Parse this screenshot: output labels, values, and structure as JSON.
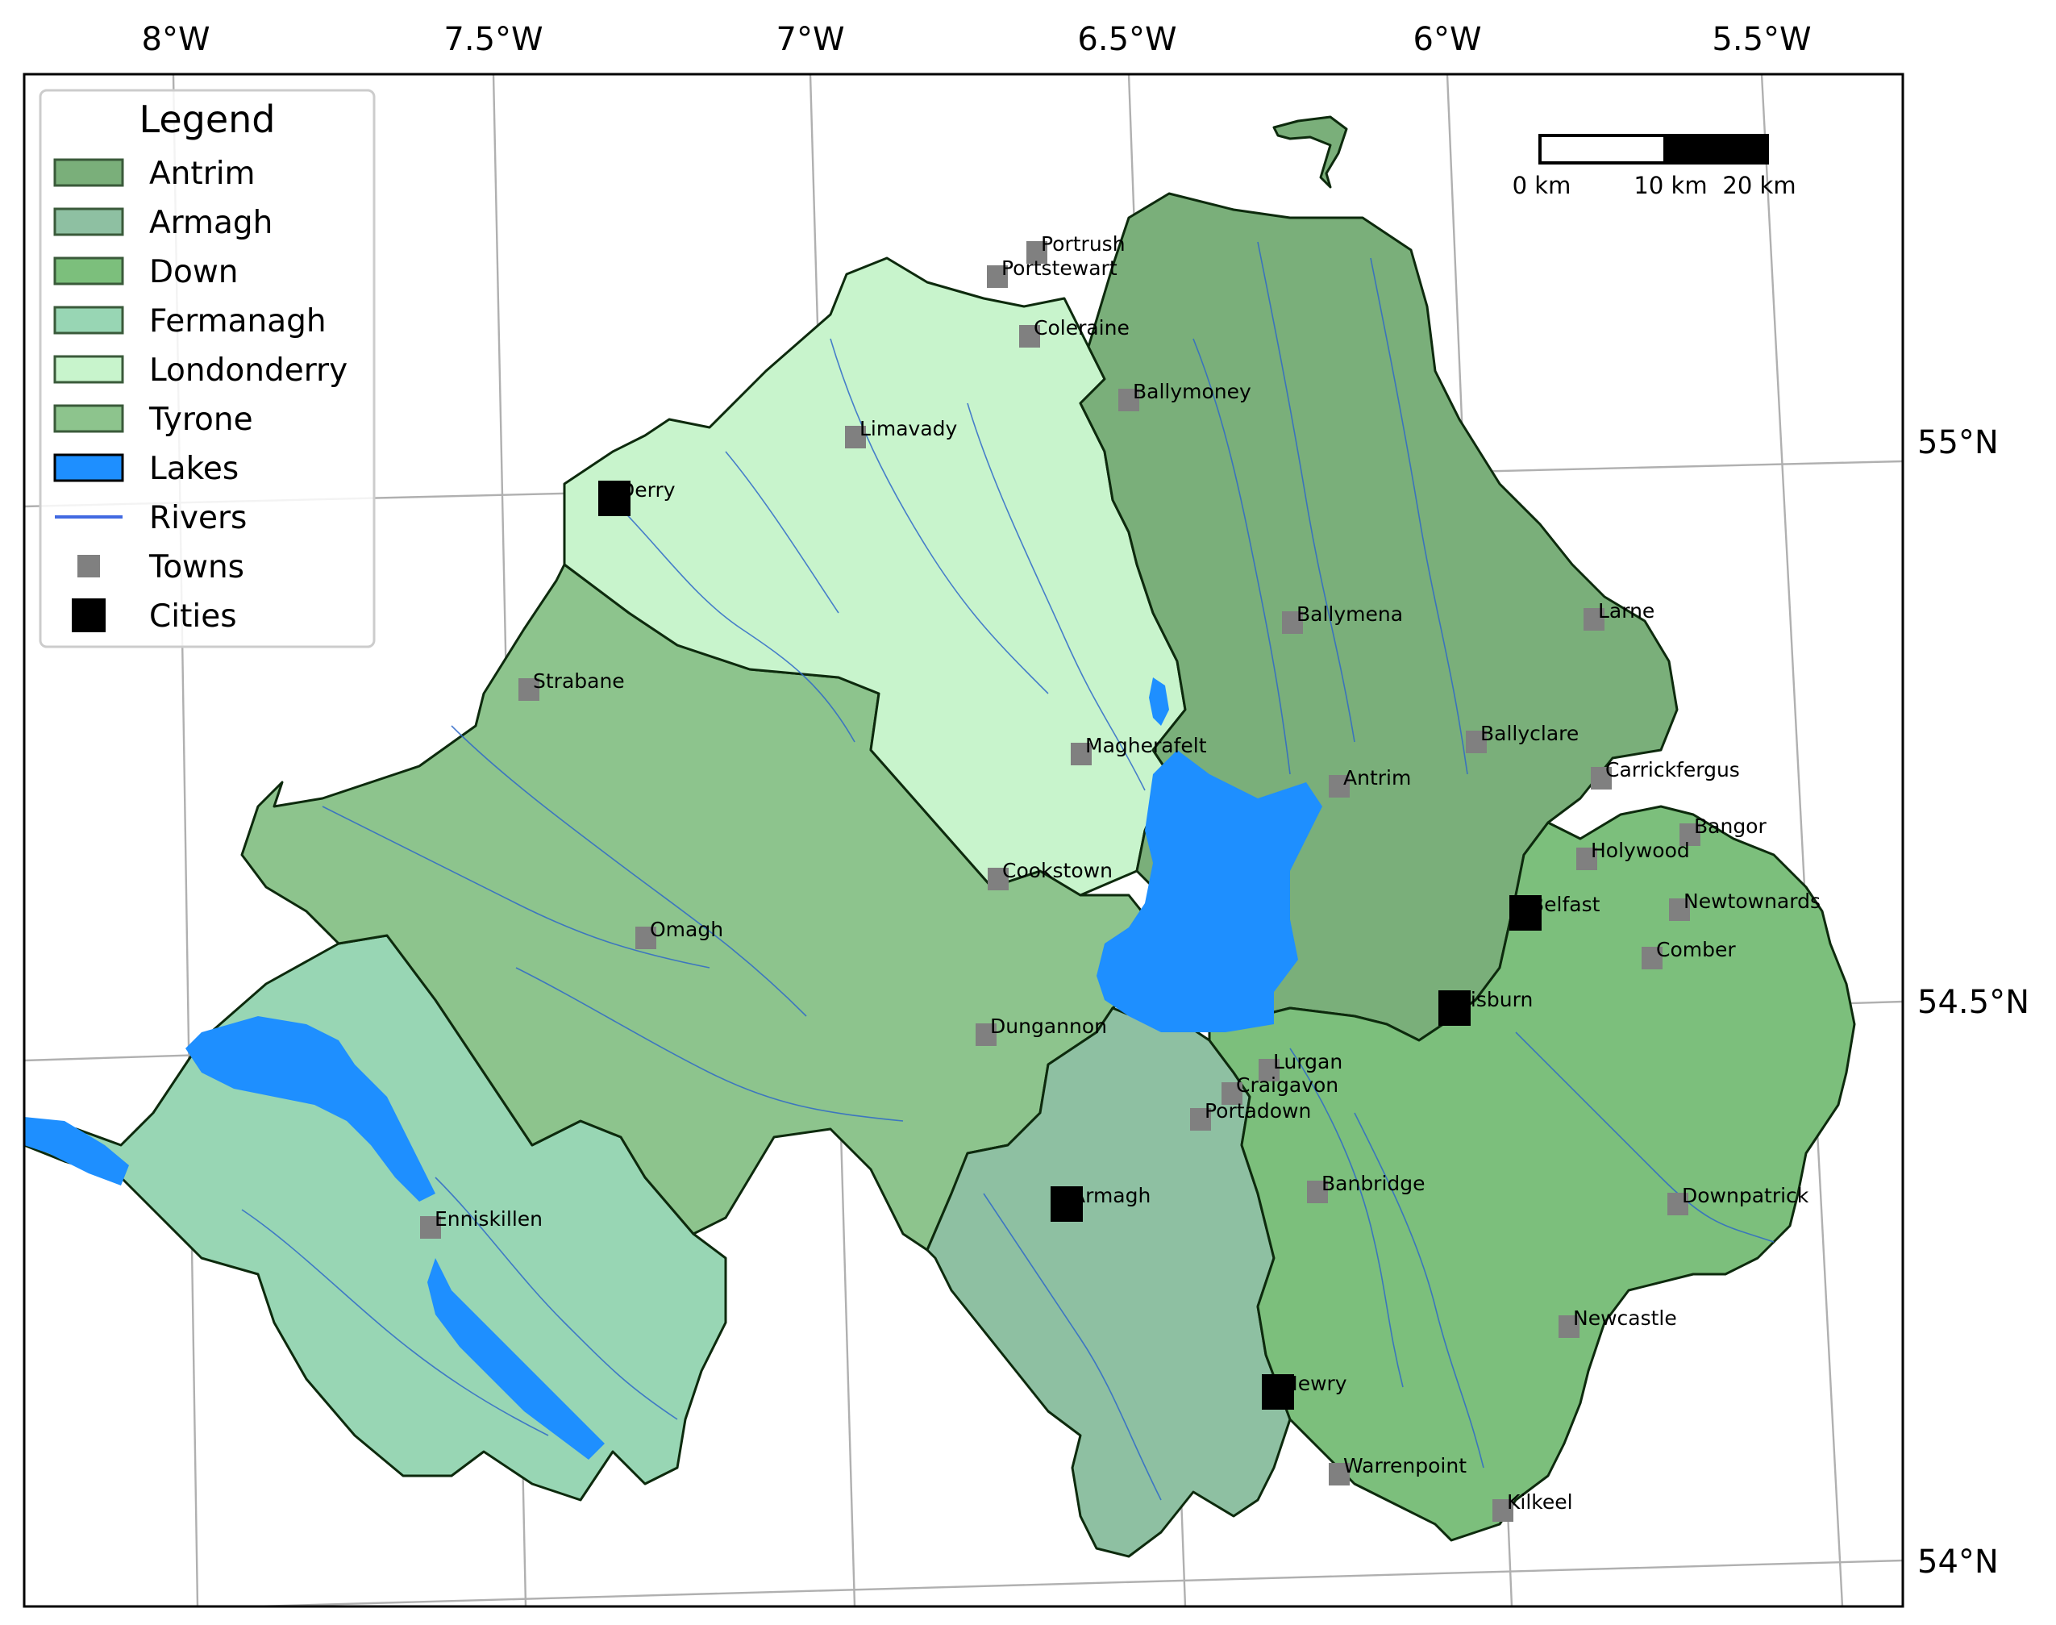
{
  "map": {
    "legend": {
      "title": "Legend",
      "items": [
        {
          "label": "Antrim",
          "kind": "patch",
          "color": "#7aaf7a"
        },
        {
          "label": "Armagh",
          "kind": "patch",
          "color": "#8ec0a2"
        },
        {
          "label": "Down",
          "kind": "patch",
          "color": "#7cbf7c"
        },
        {
          "label": "Fermanagh",
          "kind": "patch",
          "color": "#98d6b4"
        },
        {
          "label": "Londonderry",
          "kind": "patch",
          "color": "#c8f4cc"
        },
        {
          "label": "Tyrone",
          "kind": "patch",
          "color": "#8dc48d"
        },
        {
          "label": "Lakes",
          "kind": "lake",
          "color": "#1e8fff"
        },
        {
          "label": "Rivers",
          "kind": "line",
          "color": "#4169e1"
        },
        {
          "label": "Towns",
          "kind": "small-square",
          "color": "#808080"
        },
        {
          "label": "Cities",
          "kind": "big-square",
          "color": "#000000"
        }
      ]
    },
    "longitude_labels": [
      "8°W",
      "7.5°W",
      "7°W",
      "6.5°W",
      "6°W",
      "5.5°W"
    ],
    "latitude_labels": [
      "55°N",
      "54.5°N",
      "54°N"
    ],
    "scale_bar": {
      "labels": [
        "0 km",
        "10 km",
        "20 km"
      ]
    },
    "counties": [
      {
        "name": "Londonderry",
        "color": "#c8f4cc"
      },
      {
        "name": "Antrim",
        "color": "#7aaf7a"
      },
      {
        "name": "Tyrone",
        "color": "#8dc48d"
      },
      {
        "name": "Fermanagh",
        "color": "#98d6b4"
      },
      {
        "name": "Armagh",
        "color": "#8ec0a2"
      },
      {
        "name": "Down",
        "color": "#7cbf7c"
      }
    ],
    "towns": [
      {
        "name": "Portrush"
      },
      {
        "name": "Portstewart"
      },
      {
        "name": "Coleraine"
      },
      {
        "name": "Ballymoney"
      },
      {
        "name": "Limavady"
      },
      {
        "name": "Ballymena"
      },
      {
        "name": "Larne"
      },
      {
        "name": "Strabane"
      },
      {
        "name": "Ballyclare"
      },
      {
        "name": "Magherafelt"
      },
      {
        "name": "Carrickfergus"
      },
      {
        "name": "Antrim"
      },
      {
        "name": "Bangor"
      },
      {
        "name": "Holywood"
      },
      {
        "name": "Cookstown"
      },
      {
        "name": "Newtownards"
      },
      {
        "name": "Omagh"
      },
      {
        "name": "Comber"
      },
      {
        "name": "Dungannon"
      },
      {
        "name": "Lurgan"
      },
      {
        "name": "Craigavon"
      },
      {
        "name": "Portadown"
      },
      {
        "name": "Banbridge"
      },
      {
        "name": "Downpatrick"
      },
      {
        "name": "Enniskillen"
      },
      {
        "name": "Newcastle"
      },
      {
        "name": "Warrenpoint"
      },
      {
        "name": "Kilkeel"
      }
    ],
    "cities": [
      {
        "name": "Derry"
      },
      {
        "name": "Belfast"
      },
      {
        "name": "Lisburn"
      },
      {
        "name": "Armagh"
      },
      {
        "name": "Newry"
      }
    ]
  }
}
